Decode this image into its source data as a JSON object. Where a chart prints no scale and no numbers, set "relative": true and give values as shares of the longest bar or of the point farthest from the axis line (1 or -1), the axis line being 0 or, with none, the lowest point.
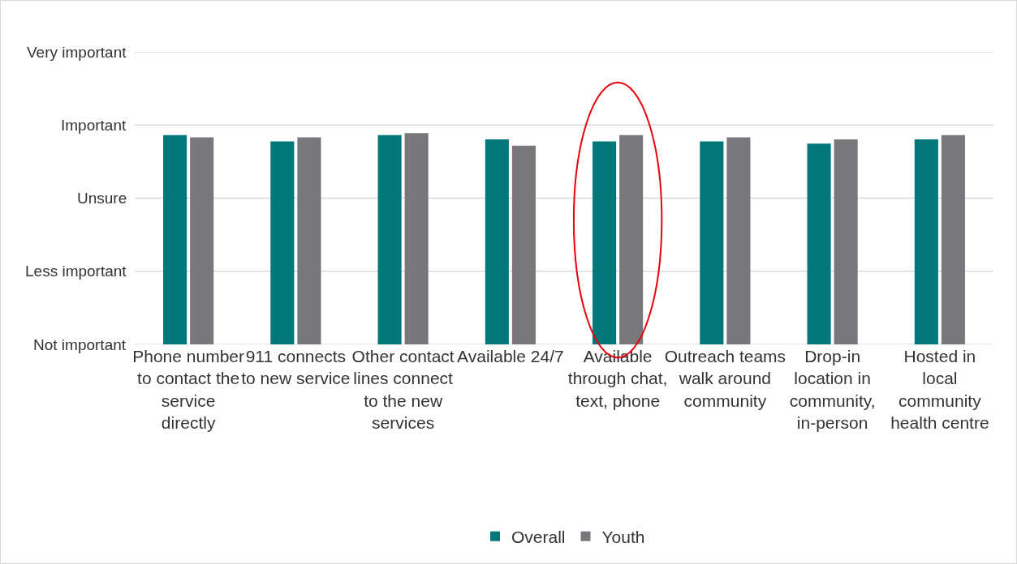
{
  "chart_data": {
    "type": "bar",
    "relative": true,
    "categories": [
      "Phone number to contact the service directly",
      "911 connects to new service",
      "Other contact lines connect to the new services",
      "Available 24/7",
      "Available through chat, text, phone",
      "Outreach teams walk around community",
      "Drop-in location in community, in-person",
      "Hosted in local community health centre"
    ],
    "series": [
      {
        "name": "Overall",
        "color": "#00777b",
        "values": [
          0.99,
          0.96,
          0.99,
          0.97,
          0.96,
          0.96,
          0.95,
          0.97
        ]
      },
      {
        "name": "Youth",
        "color": "#76787b",
        "values": [
          0.98,
          0.98,
          1,
          0.94,
          0.99,
          0.98,
          0.97,
          0.99
        ]
      }
    ],
    "ref_lines": [
      {
        "axis": "y",
        "value": 0,
        "label": "Not important",
        "color": "#d9d9d9"
      },
      {
        "axis": "y",
        "value": 0.346,
        "label": "Less important",
        "color": "#d9d9d9"
      },
      {
        "axis": "y",
        "value": 0.692,
        "label": "Unsure",
        "color": "#d9d9d9"
      },
      {
        "axis": "y",
        "value": 1.038,
        "label": "Important",
        "color": "#d9d9d9"
      },
      {
        "axis": "y",
        "value": 1.384,
        "label": "Very important",
        "color": "#d9d9d9"
      }
    ],
    "legend": "bottom"
  }
}
